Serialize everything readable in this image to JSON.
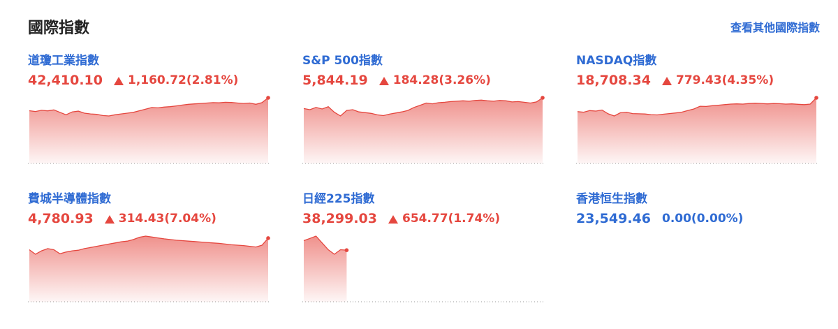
{
  "header": {
    "title": "國際指數",
    "link": "查看其他國際指數"
  },
  "indices": [
    {
      "name": "道瓊工業指數",
      "price": "42,410.10",
      "change": "1,160.72(2.81%)",
      "direction": "up",
      "color": "#e5473f",
      "spark": [
        42250,
        42240,
        42255,
        42248,
        42260,
        42230,
        42200,
        42235,
        42245,
        42220,
        42210,
        42205,
        42190,
        42185,
        42200,
        42210,
        42220,
        42230,
        42250,
        42270,
        42290,
        42285,
        42295,
        42300,
        42310,
        42320,
        42330,
        42335,
        42340,
        42345,
        42350,
        42348,
        42355,
        42352,
        42345,
        42340,
        42345,
        42330,
        42350,
        42410.1
      ]
    },
    {
      "name": "S&P 500指數",
      "price": "5,844.19",
      "change": "184.28(3.26%)",
      "direction": "up",
      "color": "#e5473f",
      "spark": [
        5815,
        5812,
        5818,
        5814,
        5820,
        5805,
        5795,
        5810,
        5812,
        5806,
        5804,
        5802,
        5798,
        5796,
        5800,
        5803,
        5806,
        5810,
        5818,
        5824,
        5830,
        5828,
        5831,
        5832,
        5834,
        5835,
        5836,
        5835,
        5837,
        5838,
        5836,
        5835,
        5837,
        5836,
        5833,
        5834,
        5832,
        5830,
        5833,
        5844.19
      ]
    },
    {
      "name": "NASDAQ指數",
      "price": "18,708.34",
      "change": "779.43(4.35%)",
      "direction": "up",
      "color": "#e5473f",
      "spark": [
        18580,
        18575,
        18590,
        18585,
        18595,
        18560,
        18540,
        18570,
        18575,
        18562,
        18560,
        18558,
        18552,
        18550,
        18556,
        18562,
        18568,
        18575,
        18590,
        18605,
        18630,
        18628,
        18635,
        18640,
        18645,
        18650,
        18652,
        18650,
        18655,
        18658,
        18656,
        18652,
        18655,
        18654,
        18650,
        18652,
        18648,
        18645,
        18650,
        18708.34
      ]
    },
    {
      "name": "費城半導體指數",
      "price": "4,780.93",
      "change": "314.43(7.04%)",
      "direction": "up",
      "color": "#e5473f",
      "spark": [
        4730,
        4710,
        4725,
        4735,
        4730,
        4712,
        4720,
        4725,
        4728,
        4735,
        4740,
        4745,
        4750,
        4755,
        4760,
        4765,
        4768,
        4775,
        4785,
        4790,
        4786,
        4782,
        4778,
        4775,
        4772,
        4770,
        4768,
        4766,
        4764,
        4762,
        4760,
        4758,
        4755,
        4752,
        4750,
        4748,
        4745,
        4742,
        4750,
        4780.93
      ]
    },
    {
      "name": "日經225指數",
      "price": "38,299.03",
      "change": "654.77(1.74%)",
      "direction": "up",
      "color": "#e5473f",
      "spark": [
        38320,
        38325,
        38330,
        38315,
        38300,
        38290,
        38300,
        38299.03,
        null,
        null,
        null,
        null,
        null,
        null,
        null,
        null,
        null,
        null,
        null,
        null,
        null,
        null,
        null,
        null,
        null,
        null,
        null,
        null,
        null,
        null,
        null,
        null,
        null,
        null,
        null,
        null,
        null,
        null,
        null,
        null
      ]
    },
    {
      "name": "香港恒生指數",
      "price": "23,549.46",
      "change": "0.00(0.00%)",
      "direction": "flat",
      "color": "#2f6bd3"
    }
  ]
}
